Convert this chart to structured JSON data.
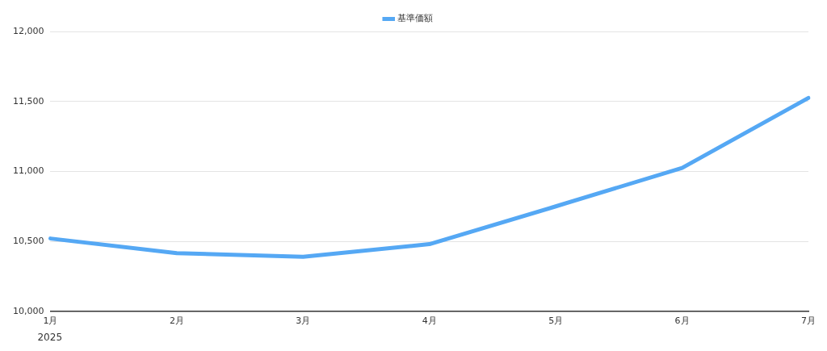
{
  "chart_data": {
    "type": "line",
    "categories": [
      "1月",
      "2月",
      "3月",
      "4月",
      "5月",
      "6月",
      "7月"
    ],
    "series": [
      {
        "name": "基準価額",
        "color": "#55a8f4",
        "values": [
          10520,
          10415,
          10390,
          10480,
          10750,
          11025,
          11525
        ]
      }
    ],
    "ylim": [
      10000,
      12000
    ],
    "yticks": [
      {
        "value": 10000,
        "label": "10,000"
      },
      {
        "value": 10500,
        "label": "10,500"
      },
      {
        "value": 11000,
        "label": "11,000"
      },
      {
        "value": 11500,
        "label": "11,500"
      },
      {
        "value": 12000,
        "label": "12,000"
      }
    ],
    "grid": "y",
    "legend": "top",
    "marker": "none",
    "line_style": "solid",
    "annotations": [
      "2025"
    ]
  }
}
